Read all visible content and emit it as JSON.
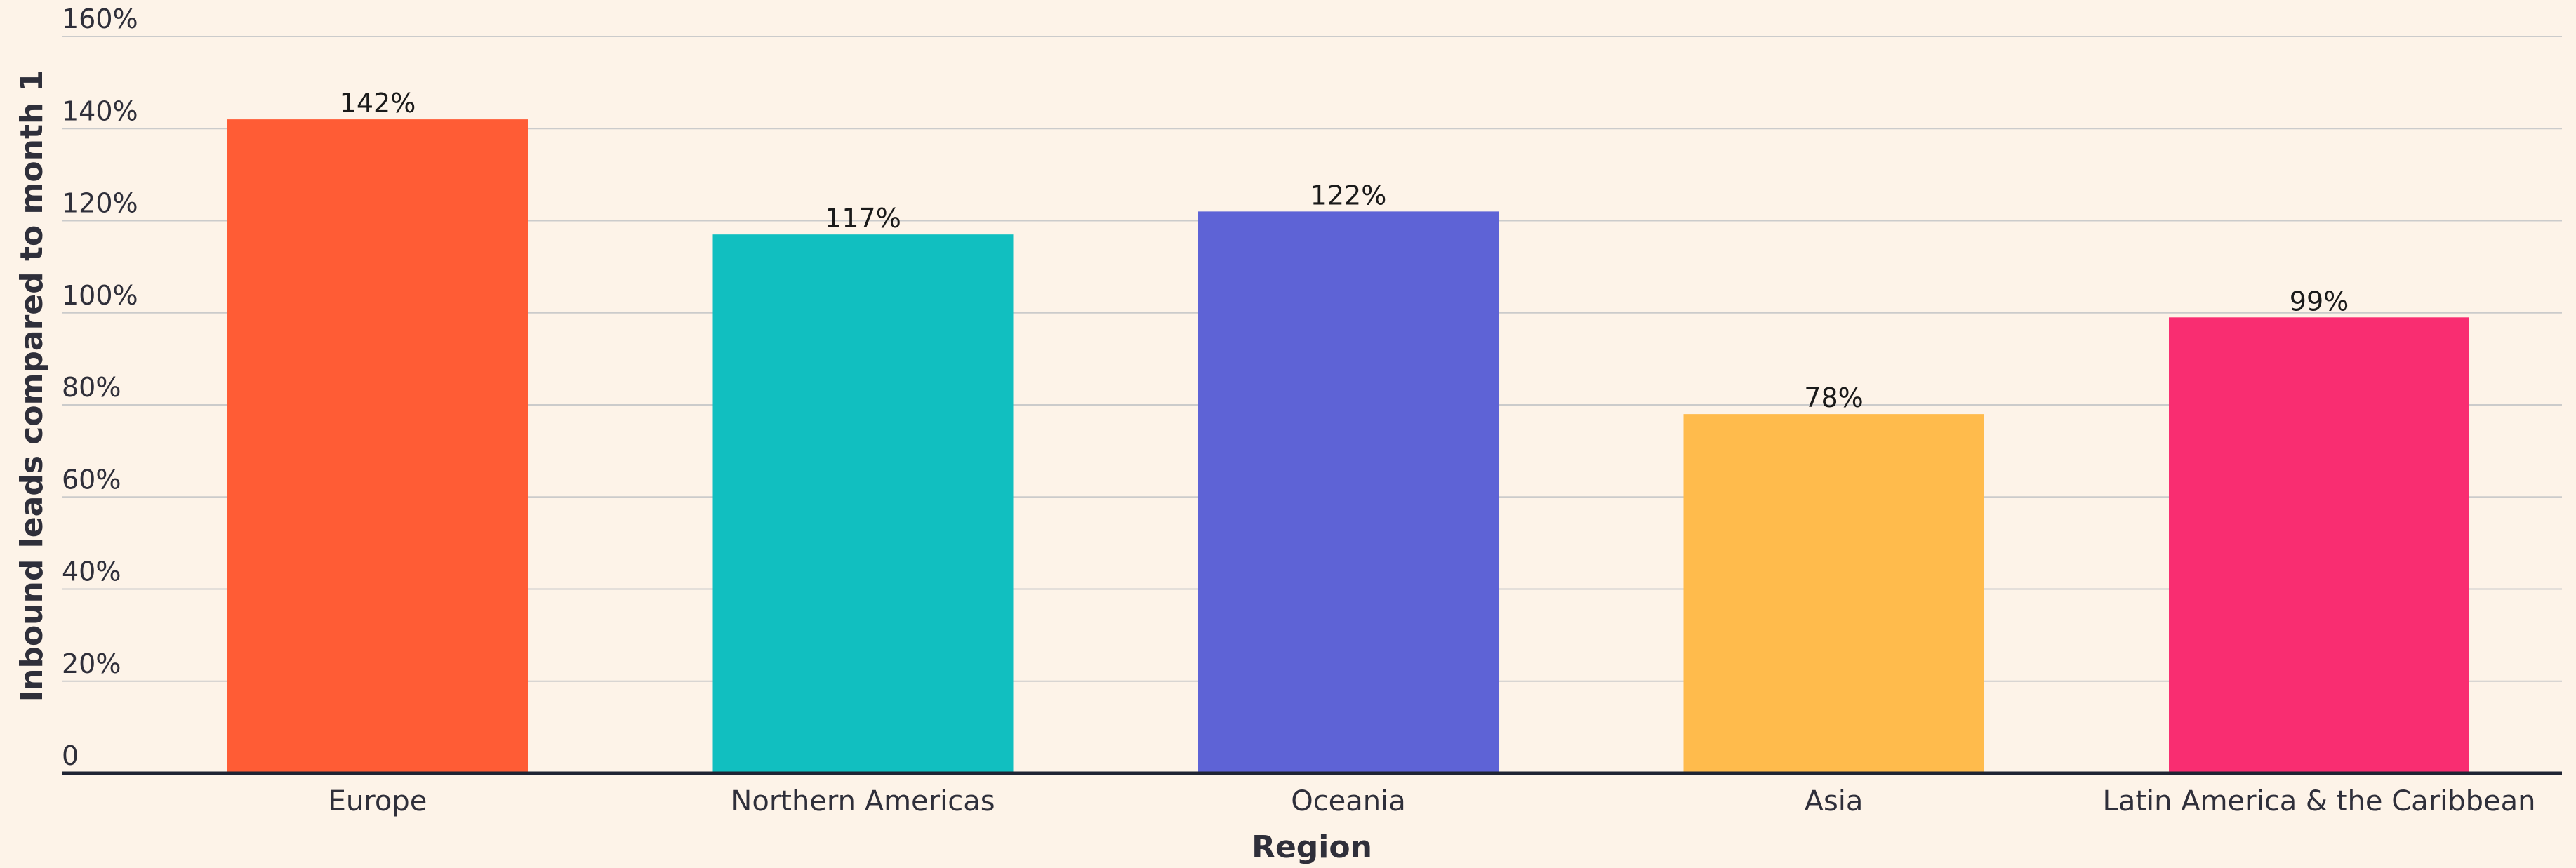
{
  "chart_data": {
    "type": "bar",
    "title": "",
    "xlabel": "Region",
    "ylabel": "Inbound leads compared to month 1",
    "categories": [
      "Europe",
      "Northern Americas",
      "Oceania",
      "Asia",
      "Latin America & the Caribbean"
    ],
    "values": [
      142,
      117,
      122,
      78,
      99
    ],
    "data_labels": [
      "142%",
      "117%",
      "122%",
      "78%",
      "99%"
    ],
    "colors": [
      "#FF5C35",
      "#11BFC0",
      "#5E63D6",
      "#FFBB4C",
      "#F92D71"
    ],
    "ylim": [
      0,
      160
    ],
    "yticks": [
      0,
      20,
      40,
      60,
      80,
      100,
      120,
      140,
      160
    ],
    "ytick_labels": [
      "0",
      "20%",
      "40%",
      "60%",
      "80%",
      "100%",
      "120%",
      "140%",
      "160%"
    ],
    "grid": true,
    "legend": "none"
  },
  "style": {
    "background": "#FDF3E8",
    "grid_color": "#CBCBCB",
    "axis_color": "#1F2433"
  }
}
